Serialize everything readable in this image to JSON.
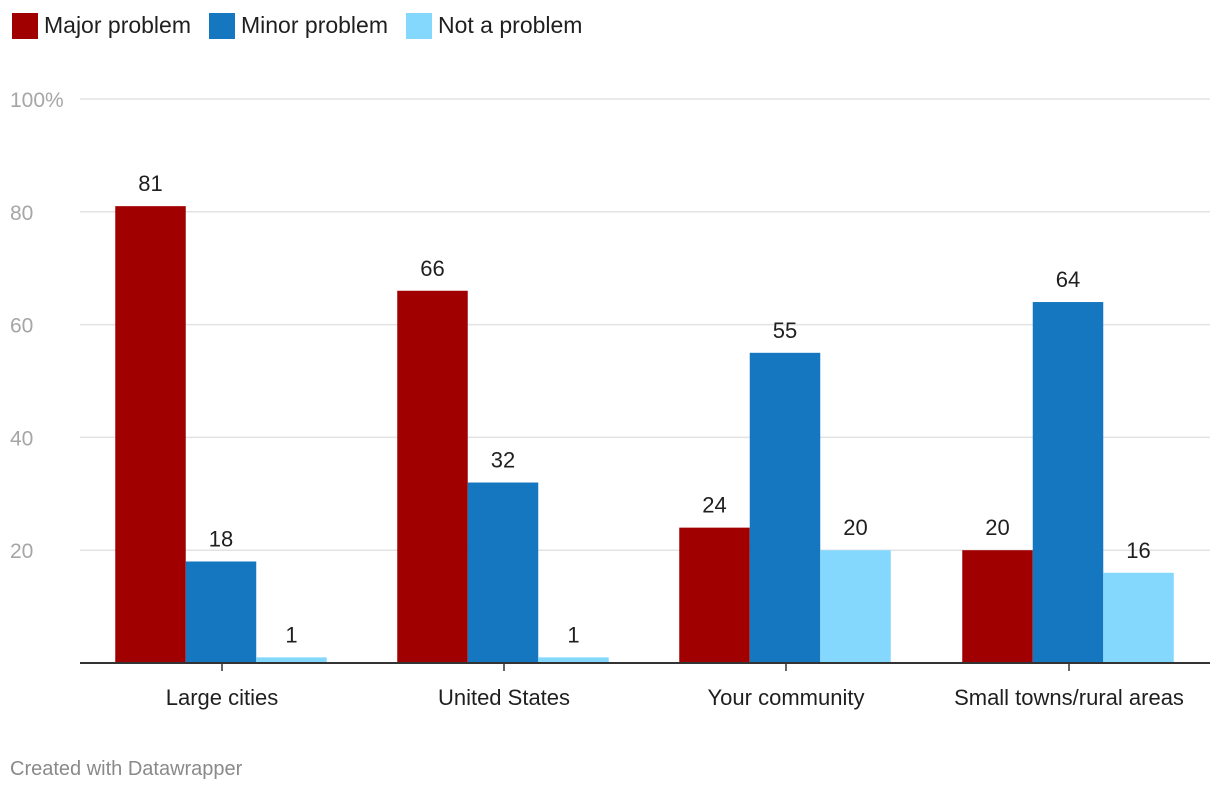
{
  "legend": {
    "items": [
      {
        "label": "Major problem",
        "color": "#a00000"
      },
      {
        "label": "Minor problem",
        "color": "#1577bf"
      },
      {
        "label": "Not a problem",
        "color": "#84d8fd"
      }
    ]
  },
  "chart_data": {
    "type": "bar",
    "categories": [
      "Large cities",
      "United States",
      "Your community",
      "Small towns/rural areas"
    ],
    "series": [
      {
        "name": "Major problem",
        "values": [
          81,
          66,
          24,
          20
        ],
        "color": "#a00000"
      },
      {
        "name": "Minor problem",
        "values": [
          18,
          32,
          55,
          64
        ],
        "color": "#1577bf"
      },
      {
        "name": "Not a problem",
        "values": [
          1,
          1,
          20,
          16
        ],
        "color": "#84d8fd"
      }
    ],
    "y_ticks": [
      {
        "value": 20,
        "label": "20"
      },
      {
        "value": 40,
        "label": "40"
      },
      {
        "value": 60,
        "label": "60"
      },
      {
        "value": 80,
        "label": "80"
      },
      {
        "value": 100,
        "label": "100%"
      }
    ],
    "ylim": [
      0,
      100
    ],
    "grid": true,
    "legend_position": "top-left"
  },
  "footer": {
    "credit": "Created with Datawrapper"
  }
}
